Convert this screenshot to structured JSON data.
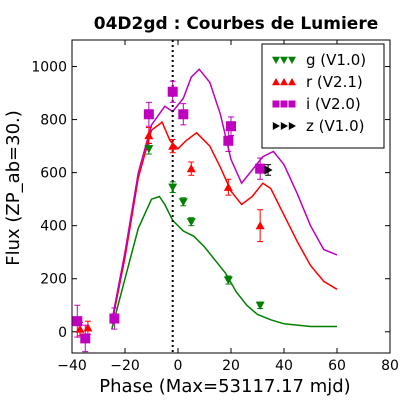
{
  "chart_data": {
    "type": "scatter",
    "title": "04D2gd : Courbes de Lumiere",
    "xlabel": "Phase (Max=53117.17 mjd)",
    "ylabel": "Flux (ZP_ab=30.)",
    "xlim": [
      -40,
      80
    ],
    "ylim": [
      -80,
      1100
    ],
    "xticks": [
      -40,
      -20,
      0,
      20,
      40,
      60,
      80
    ],
    "yticks": [
      0,
      200,
      400,
      600,
      800,
      1000
    ],
    "max_phase_marker": -2,
    "legend_position": "top-right",
    "series": [
      {
        "name": "g (V1.0)",
        "color": "#008000",
        "marker": "triangle-down",
        "points": [
          {
            "x": -11,
            "y": 690,
            "err": 20
          },
          {
            "x": -2,
            "y": 545,
            "err": 20
          },
          {
            "x": 2,
            "y": 490,
            "err": 15
          },
          {
            "x": 5,
            "y": 415,
            "err": 15
          },
          {
            "x": 19,
            "y": 195,
            "err": 15
          },
          {
            "x": 31,
            "y": 100,
            "err": 12
          }
        ],
        "model": [
          [
            -25,
            10
          ],
          [
            -20,
            200
          ],
          [
            -15,
            390
          ],
          [
            -10,
            500
          ],
          [
            -7,
            510
          ],
          [
            -5,
            480
          ],
          [
            -2,
            420
          ],
          [
            2,
            380
          ],
          [
            6,
            360
          ],
          [
            10,
            320
          ],
          [
            14,
            270
          ],
          [
            18,
            220
          ],
          [
            22,
            150
          ],
          [
            26,
            100
          ],
          [
            30,
            65
          ],
          [
            35,
            45
          ],
          [
            40,
            30
          ],
          [
            45,
            25
          ],
          [
            50,
            20
          ],
          [
            55,
            20
          ],
          [
            60,
            20
          ]
        ]
      },
      {
        "name": "r (V2.1)",
        "color": "#ff0000",
        "marker": "triangle-up",
        "points": [
          {
            "x": -37,
            "y": 10,
            "err": 25
          },
          {
            "x": -34,
            "y": 15,
            "err": 25
          },
          {
            "x": -11,
            "y": 740,
            "err": 30
          },
          {
            "x": -2,
            "y": 700,
            "err": 25
          },
          {
            "x": 5,
            "y": 615,
            "err": 25
          },
          {
            "x": 19,
            "y": 545,
            "err": 30
          },
          {
            "x": 31,
            "y": 400,
            "err": 60
          }
        ],
        "model": [
          [
            -25,
            30
          ],
          [
            -20,
            280
          ],
          [
            -15,
            580
          ],
          [
            -10,
            760
          ],
          [
            -6,
            790
          ],
          [
            -3,
            720
          ],
          [
            0,
            690
          ],
          [
            3,
            720
          ],
          [
            7,
            750
          ],
          [
            12,
            700
          ],
          [
            16,
            620
          ],
          [
            20,
            530
          ],
          [
            24,
            480
          ],
          [
            28,
            510
          ],
          [
            32,
            560
          ],
          [
            35,
            540
          ],
          [
            40,
            440
          ],
          [
            45,
            340
          ],
          [
            50,
            250
          ],
          [
            55,
            190
          ],
          [
            60,
            160
          ]
        ]
      },
      {
        "name": "i (V2.0)",
        "color": "#bf00bf",
        "marker": "square",
        "points": [
          {
            "x": -38,
            "y": 40,
            "err": 60
          },
          {
            "x": -35,
            "y": -25,
            "err": 50
          },
          {
            "x": -24,
            "y": 50,
            "err": 40
          },
          {
            "x": -11,
            "y": 820,
            "err": 45
          },
          {
            "x": -2,
            "y": 905,
            "err": 40
          },
          {
            "x": 2,
            "y": 820,
            "err": 40
          },
          {
            "x": 19,
            "y": 720,
            "err": 40
          },
          {
            "x": 20,
            "y": 775,
            "err": 35
          },
          {
            "x": 31,
            "y": 615,
            "err": 40
          }
        ],
        "model": [
          [
            -25,
            40
          ],
          [
            -20,
            300
          ],
          [
            -15,
            600
          ],
          [
            -10,
            780
          ],
          [
            -5,
            850
          ],
          [
            -2,
            830
          ],
          [
            2,
            880
          ],
          [
            5,
            960
          ],
          [
            8,
            990
          ],
          [
            12,
            940
          ],
          [
            16,
            820
          ],
          [
            20,
            650
          ],
          [
            24,
            560
          ],
          [
            28,
            610
          ],
          [
            32,
            660
          ],
          [
            36,
            680
          ],
          [
            40,
            630
          ],
          [
            45,
            520
          ],
          [
            50,
            400
          ],
          [
            55,
            310
          ],
          [
            60,
            290
          ]
        ]
      },
      {
        "name": "z (V1.0)",
        "color": "#000000",
        "marker": "triangle-right",
        "points": [
          {
            "x": 34,
            "y": 610,
            "err": 20
          }
        ],
        "model": []
      }
    ]
  }
}
